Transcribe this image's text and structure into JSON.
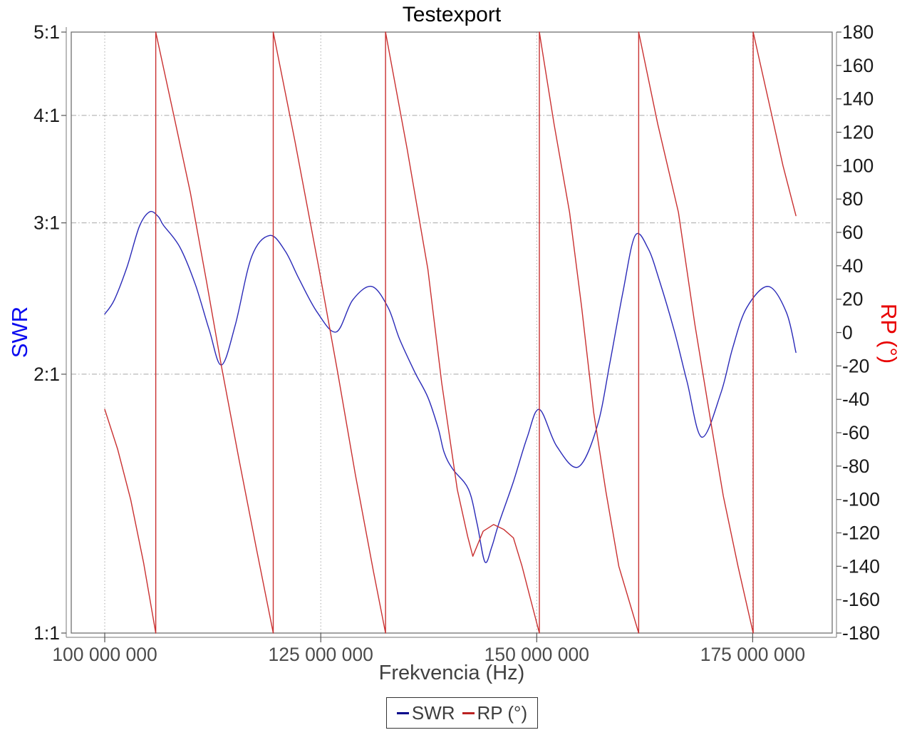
{
  "window": {
    "background": "#ffffff"
  },
  "chart_data": {
    "type": "line",
    "title": "Testexport",
    "xlabel": "Frekvencia (Hz)",
    "grid": true,
    "legend_position": "bottom-center",
    "x_axis": {
      "lim": [
        96120000,
        184200000
      ],
      "tick_label_color": "#4b4b4b",
      "ticks": [
        {
          "value": 100000000,
          "label": "100 000 000"
        },
        {
          "value": 125000000,
          "label": "125 000 000"
        },
        {
          "value": 150000000,
          "label": "150 000 000"
        },
        {
          "value": 175000000,
          "label": "175 000 000"
        }
      ]
    },
    "y_left": {
      "label": "SWR",
      "label_color": "#0a0af0",
      "scale": "log",
      "lim": [
        1,
        5
      ],
      "tick_label_color": "#1a1a1a",
      "ticks": [
        {
          "value": 5,
          "label": "5:1"
        },
        {
          "value": 4,
          "label": "4:1"
        },
        {
          "value": 3,
          "label": "3:1"
        },
        {
          "value": 2,
          "label": "2:1"
        },
        {
          "value": 1,
          "label": "1:1"
        }
      ]
    },
    "y_right": {
      "label": "RP (°)",
      "label_color": "#e80000",
      "scale": "linear",
      "lim": [
        -180,
        180
      ],
      "tick_label_color": "#1a1a1a",
      "ticks": [
        {
          "value": 180,
          "label": "180"
        },
        {
          "value": 160,
          "label": "160"
        },
        {
          "value": 140,
          "label": "140"
        },
        {
          "value": 120,
          "label": "120"
        },
        {
          "value": 100,
          "label": "100"
        },
        {
          "value": 80,
          "label": "80"
        },
        {
          "value": 60,
          "label": "60"
        },
        {
          "value": 40,
          "label": "40"
        },
        {
          "value": 20,
          "label": "20"
        },
        {
          "value": 0,
          "label": "0"
        },
        {
          "value": -20,
          "label": "-20"
        },
        {
          "value": -40,
          "label": "-40"
        },
        {
          "value": -60,
          "label": "-60"
        },
        {
          "value": -80,
          "label": "-80"
        },
        {
          "value": -100,
          "label": "-100"
        },
        {
          "value": -120,
          "label": "-120"
        },
        {
          "value": -140,
          "label": "-140"
        },
        {
          "value": -160,
          "label": "-160"
        },
        {
          "value": -180,
          "label": "-180"
        }
      ]
    },
    "colors": {
      "grid": "#a8a8a8",
      "plot_border": "#707070",
      "outer_axis": "#909090",
      "swr_series": "#2a2ab8",
      "rp_series": "#c93030"
    },
    "series": [
      {
        "name": "SWR",
        "axis": "left",
        "color": "#2a2ab8",
        "smooth": true,
        "points": [
          [
            100000000,
            2.35
          ],
          [
            101100000,
            2.44
          ],
          [
            102600000,
            2.67
          ],
          [
            104000000,
            2.97
          ],
          [
            105200000,
            3.09
          ],
          [
            106200000,
            3.05
          ],
          [
            106800000,
            2.98
          ],
          [
            108700000,
            2.81
          ],
          [
            110500000,
            2.54
          ],
          [
            112100000,
            2.25
          ],
          [
            113500000,
            2.05
          ],
          [
            115100000,
            2.28
          ],
          [
            117000000,
            2.74
          ],
          [
            119100000,
            2.9
          ],
          [
            120900000,
            2.78
          ],
          [
            122500000,
            2.58
          ],
          [
            124600000,
            2.36
          ],
          [
            126800000,
            2.24
          ],
          [
            128700000,
            2.44
          ],
          [
            130900000,
            2.53
          ],
          [
            132800000,
            2.39
          ],
          [
            134100000,
            2.2
          ],
          [
            135900000,
            2.01
          ],
          [
            137400000,
            1.88
          ],
          [
            138600000,
            1.73
          ],
          [
            139300000,
            1.62
          ],
          [
            140300000,
            1.55
          ],
          [
            142100000,
            1.47
          ],
          [
            143100000,
            1.34
          ],
          [
            144000000,
            1.21
          ],
          [
            144800000,
            1.26
          ],
          [
            145600000,
            1.34
          ],
          [
            147300000,
            1.5
          ],
          [
            148900000,
            1.69
          ],
          [
            150300000,
            1.82
          ],
          [
            152300000,
            1.65
          ],
          [
            154800000,
            1.56
          ],
          [
            157000000,
            1.74
          ],
          [
            158500000,
            2.07
          ],
          [
            160000000,
            2.5
          ],
          [
            161400000,
            2.9
          ],
          [
            162900000,
            2.8
          ],
          [
            164200000,
            2.57
          ],
          [
            165900000,
            2.25
          ],
          [
            167400000,
            1.96
          ],
          [
            169100000,
            1.69
          ],
          [
            171300000,
            1.9
          ],
          [
            172700000,
            2.15
          ],
          [
            174300000,
            2.39
          ],
          [
            176800000,
            2.53
          ],
          [
            178900000,
            2.36
          ],
          [
            180000000,
            2.12
          ]
        ]
      },
      {
        "name": "RP (°)",
        "axis": "right",
        "color": "#c93030",
        "smooth": false,
        "points": [
          [
            100000000,
            -46
          ],
          [
            101500000,
            -70
          ],
          [
            103000000,
            -100
          ],
          [
            104500000,
            -138
          ],
          [
            105900000,
            -180
          ],
          [
            105900000,
            180
          ],
          [
            108000000,
            130
          ],
          [
            109900000,
            84
          ],
          [
            111800000,
            30
          ],
          [
            113500000,
            -20
          ],
          [
            115500000,
            -75
          ],
          [
            117500000,
            -128
          ],
          [
            119500000,
            -180
          ],
          [
            119500000,
            180
          ],
          [
            122000000,
            115
          ],
          [
            124800000,
            38
          ],
          [
            127000000,
            -25
          ],
          [
            129000000,
            -85
          ],
          [
            131100000,
            -143
          ],
          [
            132500000,
            -180
          ],
          [
            132500000,
            180
          ],
          [
            135000000,
            110
          ],
          [
            137400000,
            38
          ],
          [
            139000000,
            -30
          ],
          [
            140800000,
            -94
          ],
          [
            142000000,
            -122
          ],
          [
            142600000,
            -134
          ],
          [
            143800000,
            -119
          ],
          [
            145000000,
            -115
          ],
          [
            146200000,
            -118
          ],
          [
            147300000,
            -123
          ],
          [
            148300000,
            -140
          ],
          [
            149300000,
            -160
          ],
          [
            150300000,
            -180
          ],
          [
            150300000,
            180
          ],
          [
            152000000,
            125
          ],
          [
            153800000,
            72
          ],
          [
            155200000,
            15
          ],
          [
            156600000,
            -48
          ],
          [
            158000000,
            -95
          ],
          [
            159500000,
            -140
          ],
          [
            161800000,
            -180
          ],
          [
            161800000,
            180
          ],
          [
            164000000,
            125
          ],
          [
            166400000,
            72
          ],
          [
            168300000,
            5
          ],
          [
            170200000,
            -55
          ],
          [
            171600000,
            -98
          ],
          [
            173300000,
            -140
          ],
          [
            175050000,
            -180
          ],
          [
            175050000,
            180
          ],
          [
            177000000,
            135
          ],
          [
            178500000,
            100
          ],
          [
            180000000,
            70
          ]
        ]
      }
    ],
    "legend": [
      {
        "label": "SWR",
        "color": "#00008b"
      },
      {
        "label": "RP (°)",
        "color": "#bb2222"
      }
    ]
  }
}
